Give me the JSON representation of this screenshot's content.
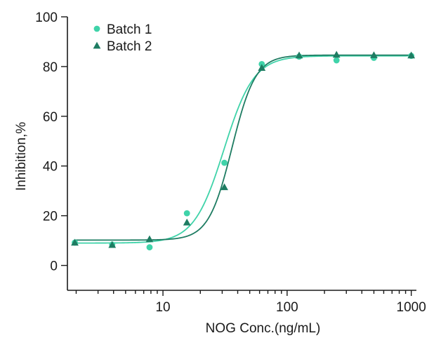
{
  "chart_data": {
    "type": "scatter",
    "title": "",
    "xlabel": "NOG Conc.(ng/mL)",
    "ylabel": "Inhibition,%",
    "xscale": "log",
    "xlim": [
      1.7,
      1100
    ],
    "ylim": [
      -10,
      100
    ],
    "yticks": [
      0,
      20,
      40,
      60,
      80,
      100
    ],
    "xticks_major": [
      10,
      100,
      1000
    ],
    "ytick_labels": [
      "0",
      "20",
      "40",
      "60",
      "80",
      "100"
    ],
    "xtick_labels": [
      "10",
      "100",
      "1000"
    ],
    "legend_position": "top-left",
    "series": [
      {
        "name": "Batch 1",
        "marker": "circle",
        "color": "#3fd3a9",
        "x": [
          1.95,
          3.9,
          7.8,
          15.6,
          31.25,
          62.5,
          125,
          250,
          500,
          1000
        ],
        "y": [
          9.2,
          8.4,
          7.3,
          21,
          41.3,
          81,
          84,
          82.5,
          83.5,
          84.3
        ],
        "fit": {
          "bottom": 9.0,
          "top": 84.3,
          "ec50": 31,
          "hill": 3.6
        }
      },
      {
        "name": "Batch 2",
        "marker": "triangle",
        "color": "#1e7c62",
        "x": [
          1.95,
          3.9,
          7.8,
          15.6,
          31.25,
          62.5,
          125,
          250,
          500,
          1000
        ],
        "y": [
          9.2,
          8.3,
          10.6,
          17.3,
          31.5,
          79.5,
          84.5,
          84.8,
          84.6,
          84.5
        ],
        "fit": {
          "bottom": 10.2,
          "top": 84.6,
          "ec50": 36,
          "hill": 4.6
        }
      }
    ]
  }
}
